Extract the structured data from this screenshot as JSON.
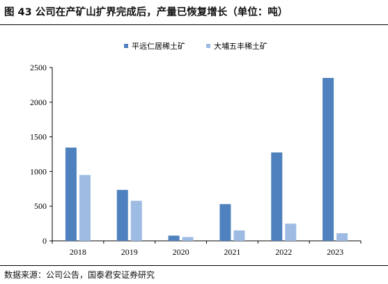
{
  "header": {
    "figure_label": "图 43",
    "title": "公司在产矿山扩界完成后，产量已恢复增长（单位：吨）"
  },
  "footer": {
    "source": "数据来源：公司公告，国泰君安证券研究"
  },
  "colors": {
    "series_dark": "#4E81BD",
    "series_light": "#9DBBE3",
    "axis": "#000000"
  },
  "chart_data": {
    "type": "bar",
    "categories": [
      "2018",
      "2019",
      "2020",
      "2021",
      "2022",
      "2023"
    ],
    "series": [
      {
        "name": "平远仁居稀土矿",
        "values": [
          1345,
          735,
          75,
          530,
          1275,
          2350
        ]
      },
      {
        "name": "大埔五丰稀土矿",
        "values": [
          950,
          578,
          55,
          150,
          248,
          110
        ]
      }
    ],
    "ylim": [
      0,
      2500
    ],
    "yticks": [
      "0",
      "500",
      "1000",
      "1500",
      "2000",
      "2500"
    ],
    "grid": false,
    "legend_position": "top-center"
  }
}
